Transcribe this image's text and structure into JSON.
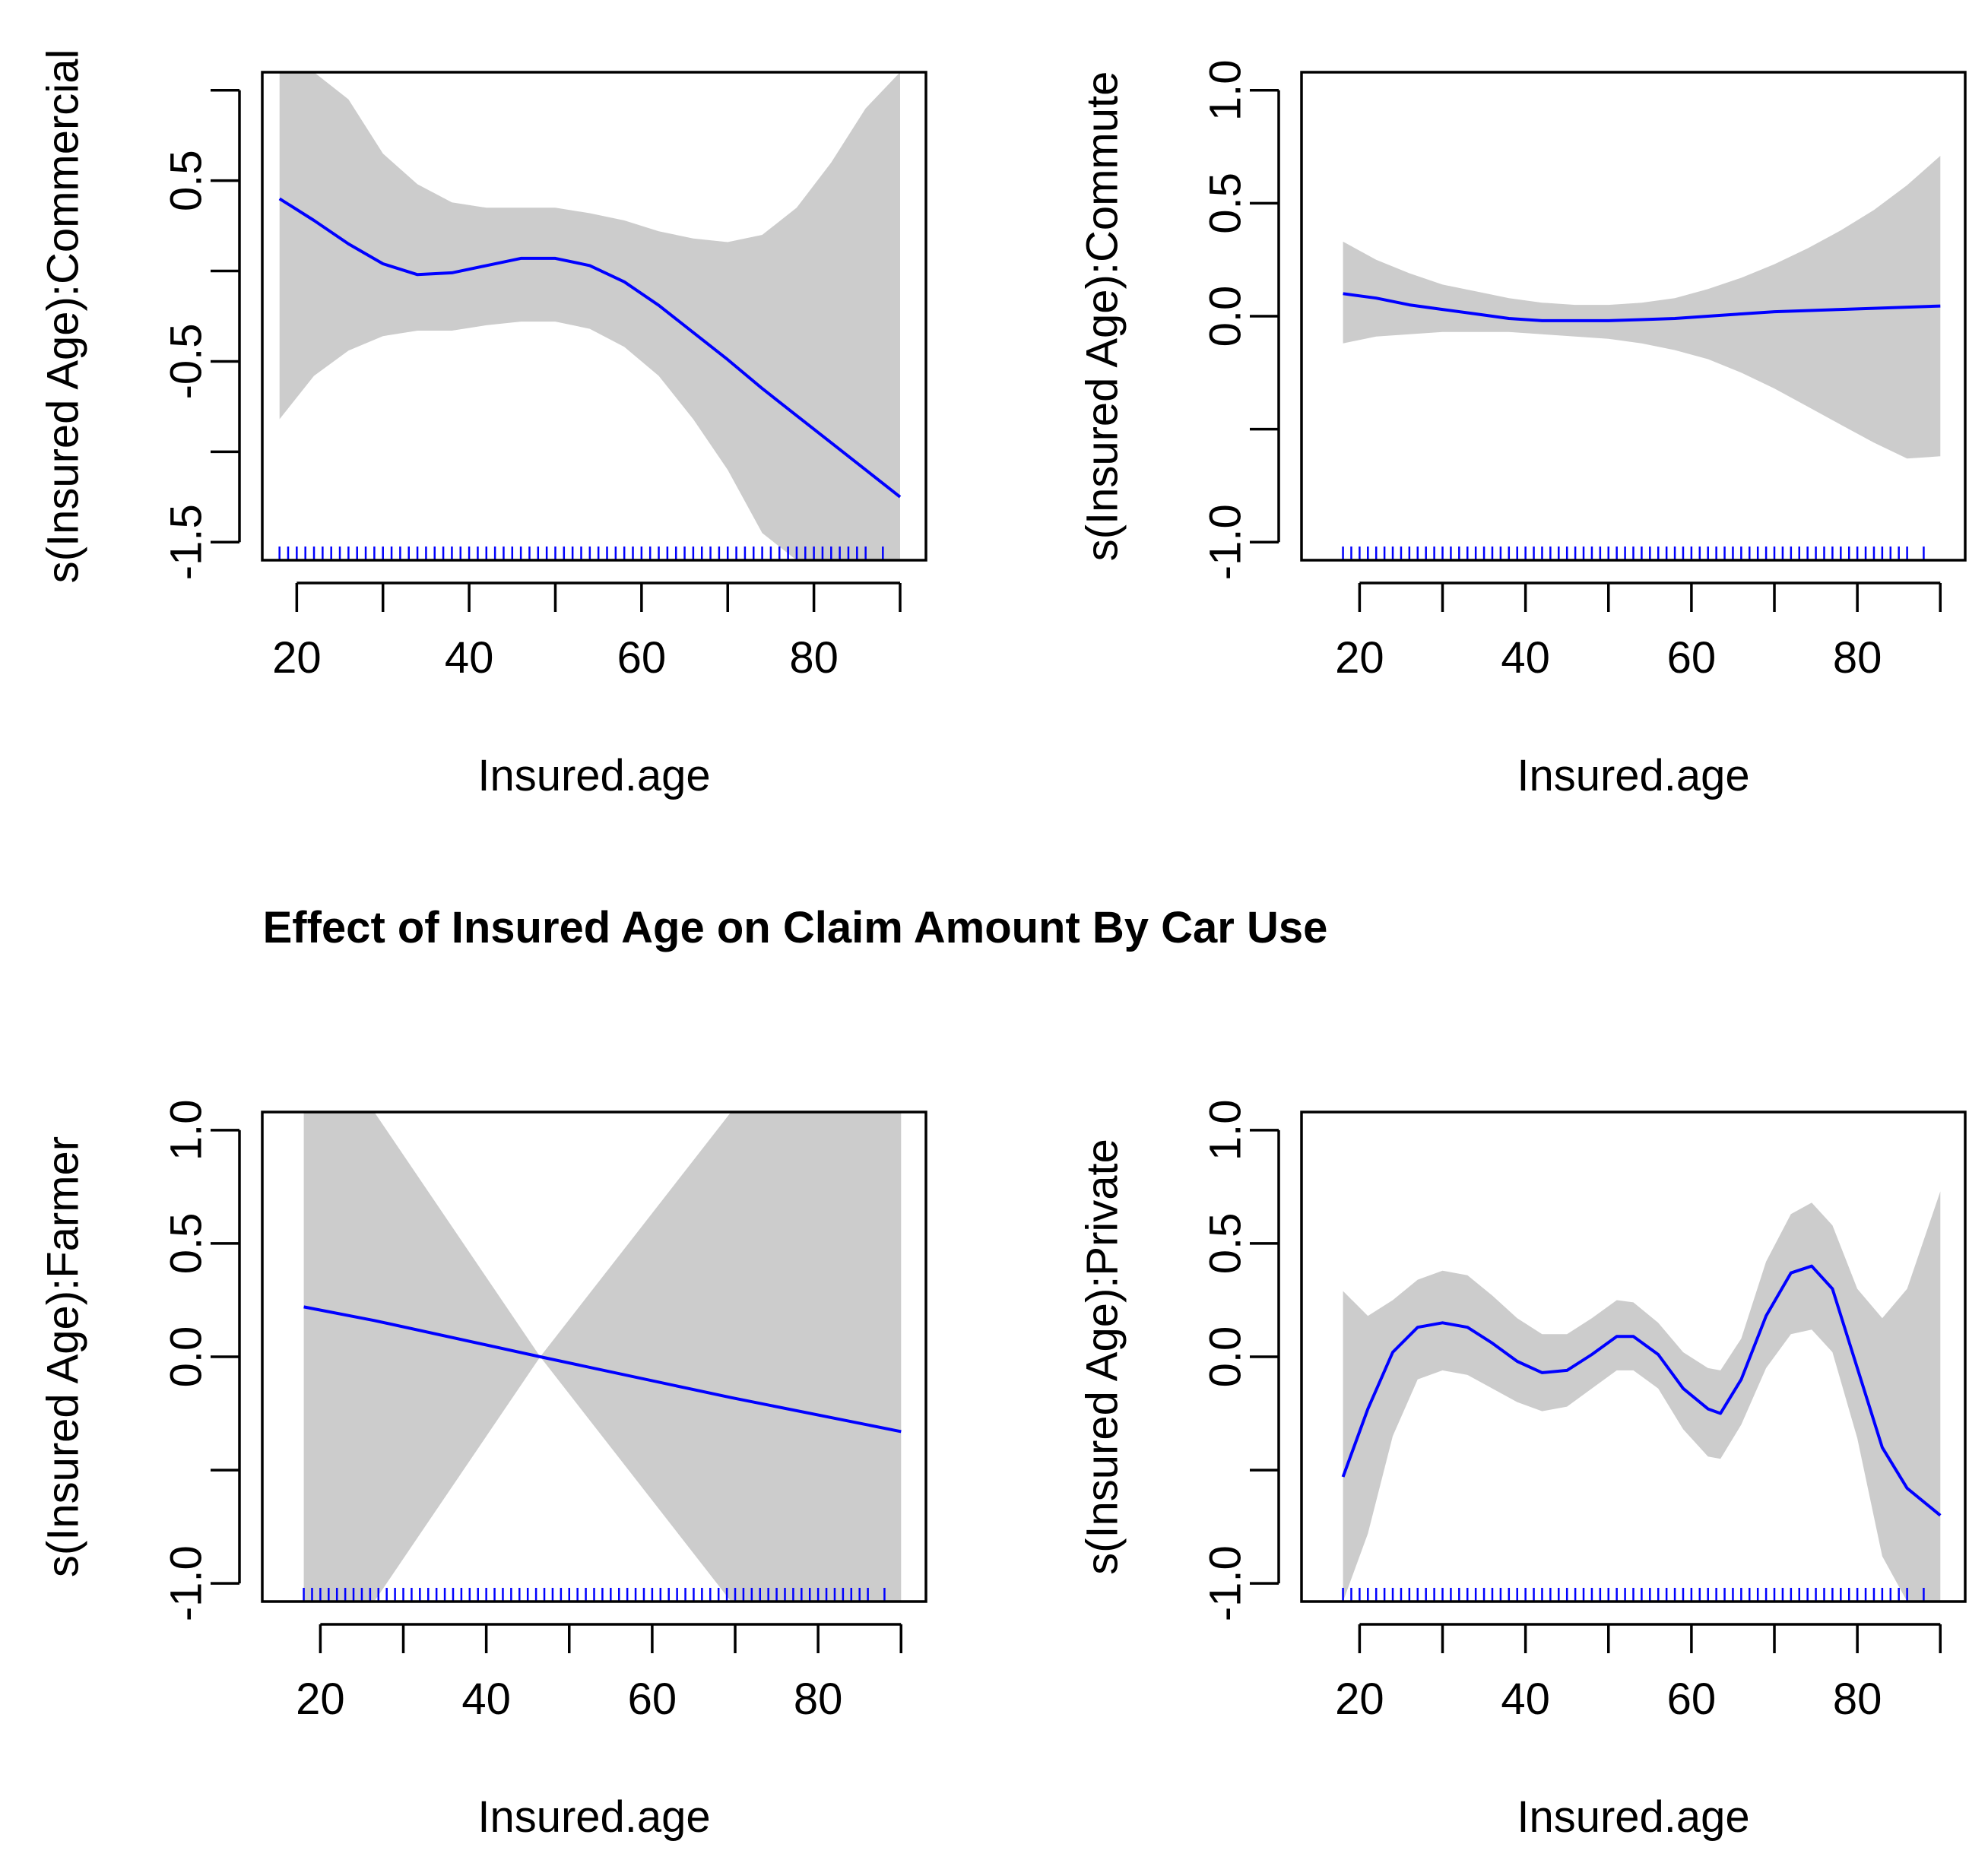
{
  "main_title": "Effect of Insured Age on Claim Amount By Car Use",
  "colors": {
    "line": "#0000ff",
    "band": "#cccccc",
    "rug": "#0000ff",
    "axis": "#000000"
  },
  "chart_data": [
    {
      "type": "line",
      "id": "commercial",
      "xlabel": "Insured.age",
      "ylabel": "s(Insured Age):Commercial",
      "xlim": [
        16,
        93
      ],
      "ylim": [
        -1.6,
        1.1
      ],
      "xticks": [
        20,
        30,
        40,
        50,
        60,
        70,
        80,
        90
      ],
      "xtick_labels": [
        "20",
        "",
        "40",
        "",
        "60",
        "",
        "80",
        ""
      ],
      "yticks": [
        -1.5,
        -1.0,
        -0.5,
        0.0,
        0.5,
        1.0
      ],
      "ytick_labels": [
        "-1.5",
        "",
        "-0.5",
        "",
        "0.5",
        ""
      ],
      "x": [
        18,
        22,
        26,
        30,
        34,
        38,
        42,
        46,
        50,
        54,
        58,
        62,
        66,
        70,
        74,
        78,
        82,
        86,
        90
      ],
      "fit": [
        0.4,
        0.28,
        0.15,
        0.04,
        -0.02,
        -0.01,
        0.03,
        0.07,
        0.07,
        0.03,
        -0.06,
        -0.19,
        -0.34,
        -0.49,
        -0.65,
        -0.8,
        -0.95,
        -1.1,
        -1.25
      ],
      "upper": [
        1.1,
        1.1,
        0.95,
        0.65,
        0.48,
        0.38,
        0.35,
        0.35,
        0.35,
        0.32,
        0.28,
        0.22,
        0.18,
        0.16,
        0.2,
        0.35,
        0.6,
        0.9,
        1.1
      ],
      "lower": [
        -0.82,
        -0.58,
        -0.44,
        -0.36,
        -0.33,
        -0.33,
        -0.3,
        -0.28,
        -0.28,
        -0.32,
        -0.42,
        -0.58,
        -0.82,
        -1.1,
        -1.45,
        -1.6,
        -1.6,
        -1.6,
        -1.6
      ],
      "rug": [
        18,
        19,
        20,
        21,
        22,
        23,
        24,
        25,
        26,
        27,
        28,
        29,
        30,
        31,
        32,
        33,
        34,
        35,
        36,
        37,
        38,
        39,
        40,
        41,
        42,
        43,
        44,
        45,
        46,
        47,
        48,
        49,
        50,
        51,
        52,
        53,
        54,
        55,
        56,
        57,
        58,
        59,
        60,
        61,
        62,
        63,
        64,
        65,
        66,
        67,
        68,
        69,
        70,
        71,
        72,
        73,
        74,
        75,
        76,
        77,
        78,
        79,
        80,
        81,
        82,
        83,
        84,
        85,
        86,
        88
      ]
    },
    {
      "type": "line",
      "id": "commute",
      "xlabel": "Insured.age",
      "ylabel": "s(Insured Age):Commute",
      "xlim": [
        13,
        93
      ],
      "ylim": [
        -1.08,
        1.08
      ],
      "xticks": [
        20,
        30,
        40,
        50,
        60,
        70,
        80,
        90
      ],
      "xtick_labels": [
        "20",
        "",
        "40",
        "",
        "60",
        "",
        "80",
        ""
      ],
      "yticks": [
        -1.0,
        -0.5,
        0.0,
        0.5,
        1.0
      ],
      "ytick_labels": [
        "-1.0",
        "",
        "0.0",
        "0.5",
        "1.0"
      ],
      "x": [
        18,
        22,
        26,
        30,
        34,
        38,
        42,
        46,
        50,
        54,
        58,
        62,
        66,
        70,
        74,
        78,
        82,
        86,
        90
      ],
      "fit": [
        0.1,
        0.08,
        0.05,
        0.03,
        0.01,
        -0.01,
        -0.02,
        -0.02,
        -0.02,
        -0.015,
        -0.01,
        0.0,
        0.01,
        0.02,
        0.025,
        0.03,
        0.035,
        0.04,
        0.045
      ],
      "upper": [
        0.33,
        0.25,
        0.19,
        0.14,
        0.11,
        0.08,
        0.06,
        0.05,
        0.05,
        0.06,
        0.08,
        0.12,
        0.17,
        0.23,
        0.3,
        0.38,
        0.47,
        0.58,
        0.71
      ],
      "lower": [
        -0.12,
        -0.09,
        -0.08,
        -0.07,
        -0.07,
        -0.07,
        -0.08,
        -0.09,
        -0.1,
        -0.12,
        -0.15,
        -0.19,
        -0.25,
        -0.32,
        -0.4,
        -0.48,
        -0.56,
        -0.63,
        -0.62
      ],
      "rug": [
        18,
        19,
        20,
        21,
        22,
        23,
        24,
        25,
        26,
        27,
        28,
        29,
        30,
        31,
        32,
        33,
        34,
        35,
        36,
        37,
        38,
        39,
        40,
        41,
        42,
        43,
        44,
        45,
        46,
        47,
        48,
        49,
        50,
        51,
        52,
        53,
        54,
        55,
        56,
        57,
        58,
        59,
        60,
        61,
        62,
        63,
        64,
        65,
        66,
        67,
        68,
        69,
        70,
        71,
        72,
        73,
        74,
        75,
        76,
        77,
        78,
        79,
        80,
        81,
        82,
        83,
        84,
        85,
        86,
        88
      ]
    },
    {
      "type": "line",
      "id": "farmer",
      "xlabel": "Insured.age",
      "ylabel": "s(Insured Age):Farmer",
      "xlim": [
        13,
        93
      ],
      "ylim": [
        -1.08,
        1.08
      ],
      "xticks": [
        20,
        30,
        40,
        50,
        60,
        70,
        80,
        90
      ],
      "xtick_labels": [
        "20",
        "",
        "40",
        "",
        "60",
        "",
        "80",
        ""
      ],
      "yticks": [
        -1.0,
        -0.5,
        0.0,
        0.5,
        1.0
      ],
      "ytick_labels": [
        "-1.0",
        "",
        "0.0",
        "0.5",
        "1.0"
      ],
      "x": [
        18,
        26.5,
        46.5,
        69.5,
        90
      ],
      "fit": [
        0.22,
        0.16,
        0.0,
        -0.18,
        -0.33
      ],
      "upper": [
        1.08,
        1.08,
        0.0,
        1.08,
        1.08
      ],
      "lower": [
        -1.08,
        -1.08,
        0.0,
        -1.08,
        -1.08
      ],
      "rug": [
        18,
        19,
        20,
        21,
        22,
        23,
        24,
        25,
        26,
        27,
        28,
        29,
        30,
        31,
        32,
        33,
        34,
        35,
        36,
        37,
        38,
        39,
        40,
        41,
        42,
        43,
        44,
        45,
        46,
        47,
        48,
        49,
        50,
        51,
        52,
        53,
        54,
        55,
        56,
        57,
        58,
        59,
        60,
        61,
        62,
        63,
        64,
        65,
        66,
        67,
        68,
        69,
        70,
        71,
        72,
        73,
        74,
        75,
        76,
        77,
        78,
        79,
        80,
        81,
        82,
        83,
        84,
        85,
        86,
        88
      ]
    },
    {
      "type": "line",
      "id": "private",
      "xlabel": "Insured.age",
      "ylabel": "s(Insured Age):Private",
      "xlim": [
        13,
        93
      ],
      "ylim": [
        -1.08,
        1.08
      ],
      "xticks": [
        20,
        30,
        40,
        50,
        60,
        70,
        80,
        90
      ],
      "xtick_labels": [
        "20",
        "",
        "40",
        "",
        "60",
        "",
        "80",
        ""
      ],
      "yticks": [
        -1.0,
        -0.5,
        0.0,
        0.5,
        1.0
      ],
      "ytick_labels": [
        "-1.0",
        "",
        "0.0",
        "0.5",
        "1.0"
      ],
      "x": [
        18,
        21,
        24,
        27,
        30,
        33,
        36,
        39,
        42,
        45,
        48,
        51,
        53,
        56,
        59,
        62,
        63.5,
        66,
        69,
        72,
        74.5,
        77,
        80,
        83,
        86,
        90
      ],
      "fit": [
        -0.53,
        -0.23,
        0.02,
        0.13,
        0.15,
        0.13,
        0.06,
        -0.02,
        -0.07,
        -0.06,
        0.01,
        0.09,
        0.09,
        0.01,
        -0.14,
        -0.23,
        -0.25,
        -0.1,
        0.18,
        0.37,
        0.4,
        0.3,
        -0.05,
        -0.4,
        -0.58,
        -0.7
      ],
      "upper": [
        0.29,
        0.18,
        0.25,
        0.34,
        0.38,
        0.36,
        0.27,
        0.17,
        0.1,
        0.1,
        0.17,
        0.25,
        0.24,
        0.15,
        0.02,
        -0.05,
        -0.06,
        0.08,
        0.42,
        0.63,
        0.68,
        0.58,
        0.3,
        0.17,
        0.3,
        0.73
      ],
      "lower": [
        -1.08,
        -0.78,
        -0.35,
        -0.1,
        -0.06,
        -0.08,
        -0.14,
        -0.2,
        -0.24,
        -0.22,
        -0.14,
        -0.06,
        -0.06,
        -0.14,
        -0.32,
        -0.44,
        -0.45,
        -0.3,
        -0.05,
        0.1,
        0.12,
        0.02,
        -0.36,
        -0.88,
        -1.08,
        -1.08
      ],
      "rug": [
        18,
        19,
        20,
        21,
        22,
        23,
        24,
        25,
        26,
        27,
        28,
        29,
        30,
        31,
        32,
        33,
        34,
        35,
        36,
        37,
        38,
        39,
        40,
        41,
        42,
        43,
        44,
        45,
        46,
        47,
        48,
        49,
        50,
        51,
        52,
        53,
        54,
        55,
        56,
        57,
        58,
        59,
        60,
        61,
        62,
        63,
        64,
        65,
        66,
        67,
        68,
        69,
        70,
        71,
        72,
        73,
        74,
        75,
        76,
        77,
        78,
        79,
        80,
        81,
        82,
        83,
        84,
        85,
        86,
        88
      ]
    }
  ]
}
